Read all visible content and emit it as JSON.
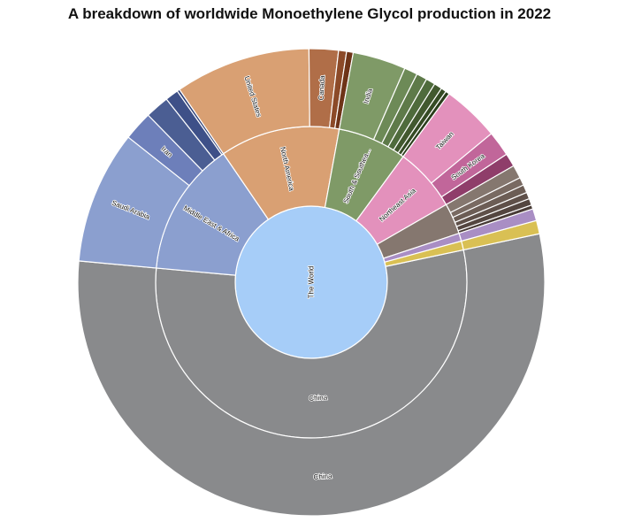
{
  "chart_data": {
    "type": "sunburst",
    "title": "A breakdown of worldwide Monoethylene Glycol production in 2022",
    "root": {
      "label": "The World",
      "color": "#a6cdf8"
    },
    "regions": [
      {
        "label": "China",
        "color": "#898a8c",
        "share": 0.595,
        "countries": [
          {
            "label": "China",
            "share": 0.595
          }
        ]
      },
      {
        "label": "Middle East & Africa",
        "color": "#8b9fcf",
        "share": 0.152,
        "countries": [
          {
            "label": "Saudi Arabia",
            "share": 0.1,
            "color": "#8b9fcf"
          },
          {
            "label": "Iran",
            "share": 0.022,
            "color": "#6d7fba"
          },
          {
            "label": "",
            "share": 0.018,
            "color": "#4b5e93"
          },
          {
            "label": "",
            "share": 0.01,
            "color": "#3e5088"
          },
          {
            "label": "",
            "share": 0.002,
            "color": "#2f3f75"
          }
        ]
      },
      {
        "label": "North America",
        "color": "#d9a073",
        "share": 0.135,
        "countries": [
          {
            "label": "United States",
            "share": 0.102,
            "color": "#d9a073"
          },
          {
            "label": "Canada",
            "share": 0.022,
            "color": "#b06e48"
          },
          {
            "label": "",
            "share": 0.006,
            "color": "#8c4a28"
          },
          {
            "label": "",
            "share": 0.005,
            "color": "#6e3418"
          }
        ]
      },
      {
        "label": "South & Southea...",
        "color": "#7f9a67",
        "share": 0.078,
        "countries": [
          {
            "label": "India",
            "share": 0.04,
            "color": "#7f9a67"
          },
          {
            "label": "",
            "share": 0.01,
            "color": "#6d8a57"
          },
          {
            "label": "",
            "share": 0.008,
            "color": "#5e7a49"
          },
          {
            "label": "",
            "share": 0.007,
            "color": "#4f6b3c"
          },
          {
            "label": "",
            "share": 0.006,
            "color": "#42592f"
          },
          {
            "label": "",
            "share": 0.004,
            "color": "#354b24"
          },
          {
            "label": "",
            "share": 0.003,
            "color": "#2b3e1c"
          }
        ]
      },
      {
        "label": "Northeast Asia",
        "color": "#e391bc",
        "share": 0.072,
        "countries": [
          {
            "label": "Taiwan",
            "share": 0.043,
            "color": "#e391bc"
          },
          {
            "label": "South Korea",
            "share": 0.019,
            "color": "#c1669a"
          },
          {
            "label": "",
            "share": 0.01,
            "color": "#8f3d6a"
          }
        ]
      },
      {
        "label": "",
        "color": "#85776f",
        "share": 0.035,
        "countries": [
          {
            "label": "",
            "share": 0.01,
            "color": "#85776f"
          },
          {
            "label": "",
            "share": 0.006,
            "color": "#796a62"
          },
          {
            "label": "",
            "share": 0.006,
            "color": "#6c5d55"
          },
          {
            "label": "",
            "share": 0.005,
            "color": "#5f5049"
          },
          {
            "label": "",
            "share": 0.005,
            "color": "#544640"
          },
          {
            "label": "",
            "share": 0.003,
            "color": "#483b36"
          }
        ]
      },
      {
        "label": "",
        "color": "#a98ec4",
        "share": 0.009,
        "countries": [
          {
            "label": "",
            "share": 0.009,
            "color": "#a98ec4"
          }
        ]
      },
      {
        "label": "",
        "color": "#d9c054",
        "share": 0.01,
        "countries": [
          {
            "label": "",
            "share": 0.01,
            "color": "#d9c054"
          }
        ]
      }
    ]
  }
}
